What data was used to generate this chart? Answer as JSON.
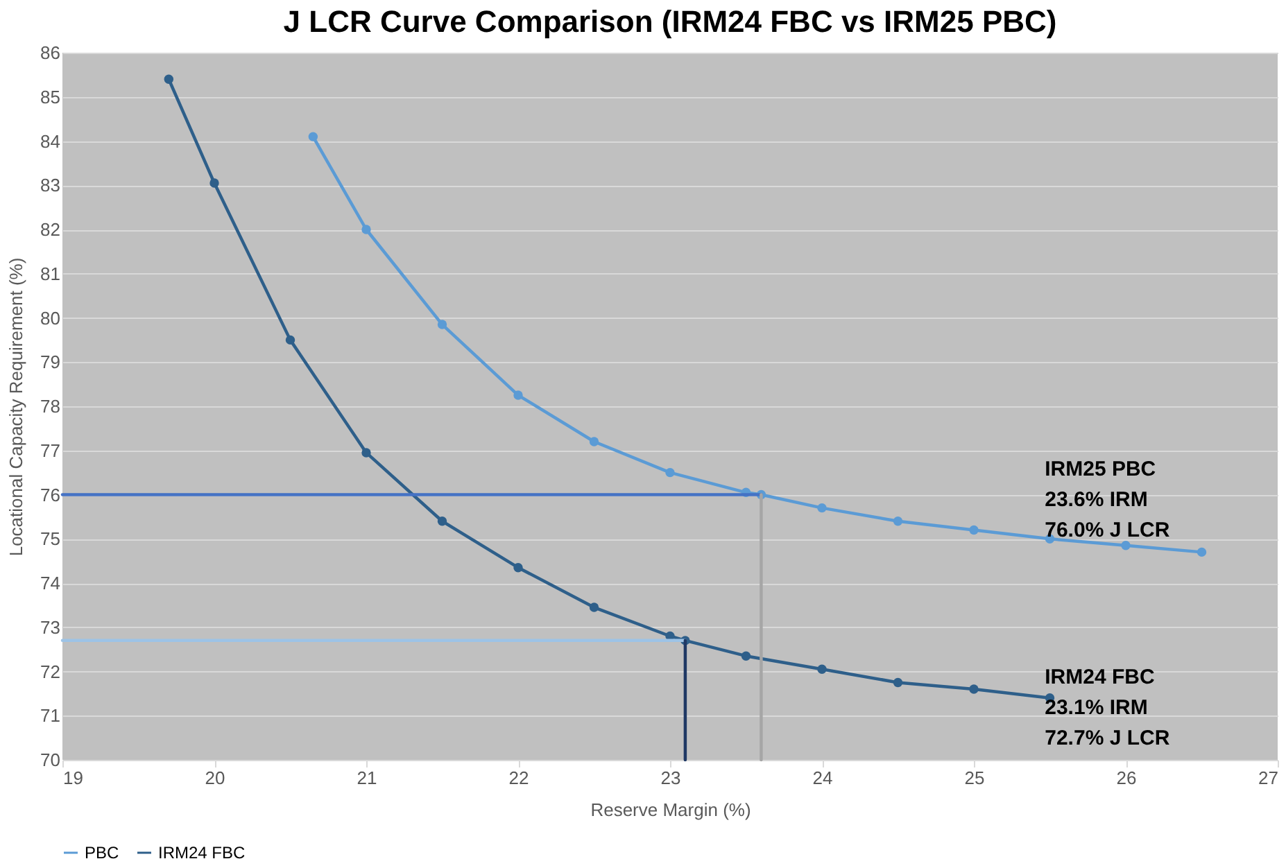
{
  "chart_data": {
    "type": "line",
    "title": "J LCR Curve Comparison (IRM24 FBC vs IRM25 PBC)",
    "xlabel": "Reserve Margin (%)",
    "ylabel": "Locational Capacity Requirement (%)",
    "xlim": [
      19,
      27
    ],
    "xticks": [
      19,
      20,
      21,
      22,
      23,
      24,
      25,
      26,
      27
    ],
    "ylim": [
      70,
      86
    ],
    "yticks": [
      70,
      71,
      72,
      73,
      74,
      75,
      76,
      77,
      78,
      79,
      80,
      81,
      82,
      83,
      84,
      85,
      86
    ],
    "grid": "y",
    "legend": "bottom",
    "marker": "circle",
    "line_style": "solid",
    "series": [
      {
        "name": "PBC",
        "color": "#5b9bd5",
        "x": [
          20.65,
          21,
          21.5,
          22,
          22.5,
          23,
          23.5,
          23.6,
          24,
          24.5,
          25,
          25.5,
          26,
          26.5
        ],
        "values": [
          84.1,
          82.0,
          79.85,
          78.25,
          77.2,
          76.5,
          76.05,
          76.0,
          75.7,
          75.4,
          75.2,
          75.0,
          74.85,
          74.7
        ]
      },
      {
        "name": "IRM24 FBC",
        "color": "#2e5f8a",
        "x": [
          19.7,
          20,
          20.5,
          21,
          21.5,
          22,
          22.5,
          23,
          23.1,
          23.5,
          24,
          24.5,
          25,
          25.5
        ],
        "values": [
          85.4,
          83.05,
          79.5,
          76.95,
          75.4,
          74.35,
          73.45,
          72.8,
          72.7,
          72.35,
          72.05,
          71.75,
          71.6,
          71.4
        ]
      },
      {
        "type": "line",
        "marker": "none",
        "color": "#4472c4",
        "x": [
          19,
          23.6
        ],
        "values": [
          76.0,
          76.0
        ]
      },
      {
        "type": "line",
        "marker": "none",
        "color": "#9dc3e6",
        "x": [
          19,
          23.1
        ],
        "values": [
          72.7,
          72.7
        ]
      },
      {
        "type": "line",
        "marker": "none",
        "color": "#a6a6a6",
        "x": [
          23.6,
          23.6
        ],
        "values": [
          70,
          76.0
        ]
      },
      {
        "type": "line",
        "marker": "none",
        "color": "#1f3864",
        "x": [
          23.1,
          23.1
        ],
        "values": [
          70,
          72.7
        ]
      }
    ],
    "annotations": [
      "IRM25 PBC\n23.6% IRM\n76.0% J LCR",
      "IRM24 FBC\n23.1% IRM\n72.7% J LCR"
    ]
  }
}
